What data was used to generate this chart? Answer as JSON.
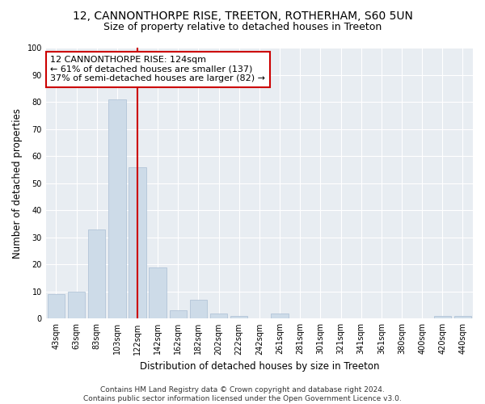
{
  "title": "12, CANNONTHORPE RISE, TREETON, ROTHERHAM, S60 5UN",
  "subtitle": "Size of property relative to detached houses in Treeton",
  "xlabel": "Distribution of detached houses by size in Treeton",
  "ylabel": "Number of detached properties",
  "bar_labels": [
    "43sqm",
    "63sqm",
    "83sqm",
    "103sqm",
    "122sqm",
    "142sqm",
    "162sqm",
    "182sqm",
    "202sqm",
    "222sqm",
    "242sqm",
    "261sqm",
    "281sqm",
    "301sqm",
    "321sqm",
    "341sqm",
    "361sqm",
    "380sqm",
    "400sqm",
    "420sqm",
    "440sqm"
  ],
  "bar_values": [
    9,
    10,
    33,
    81,
    56,
    19,
    3,
    7,
    2,
    1,
    0,
    2,
    0,
    0,
    0,
    0,
    0,
    0,
    0,
    1,
    1
  ],
  "bar_color": "#cddbe8",
  "bar_edge_color": "#aabfd4",
  "vline_color": "#cc0000",
  "vline_x": 4,
  "annotation_text": "12 CANNONTHORPE RISE: 124sqm\n← 61% of detached houses are smaller (137)\n37% of semi-detached houses are larger (82) →",
  "annotation_box_color": "#ffffff",
  "annotation_box_edge": "#cc0000",
  "ylim": [
    0,
    100
  ],
  "yticks": [
    0,
    10,
    20,
    30,
    40,
    50,
    60,
    70,
    80,
    90,
    100
  ],
  "plot_bg_color": "#e8edf2",
  "footer": "Contains HM Land Registry data © Crown copyright and database right 2024.\nContains public sector information licensed under the Open Government Licence v3.0.",
  "title_fontsize": 10,
  "subtitle_fontsize": 9,
  "xlabel_fontsize": 8.5,
  "ylabel_fontsize": 8.5,
  "tick_fontsize": 7,
  "annotation_fontsize": 8,
  "footer_fontsize": 6.5
}
